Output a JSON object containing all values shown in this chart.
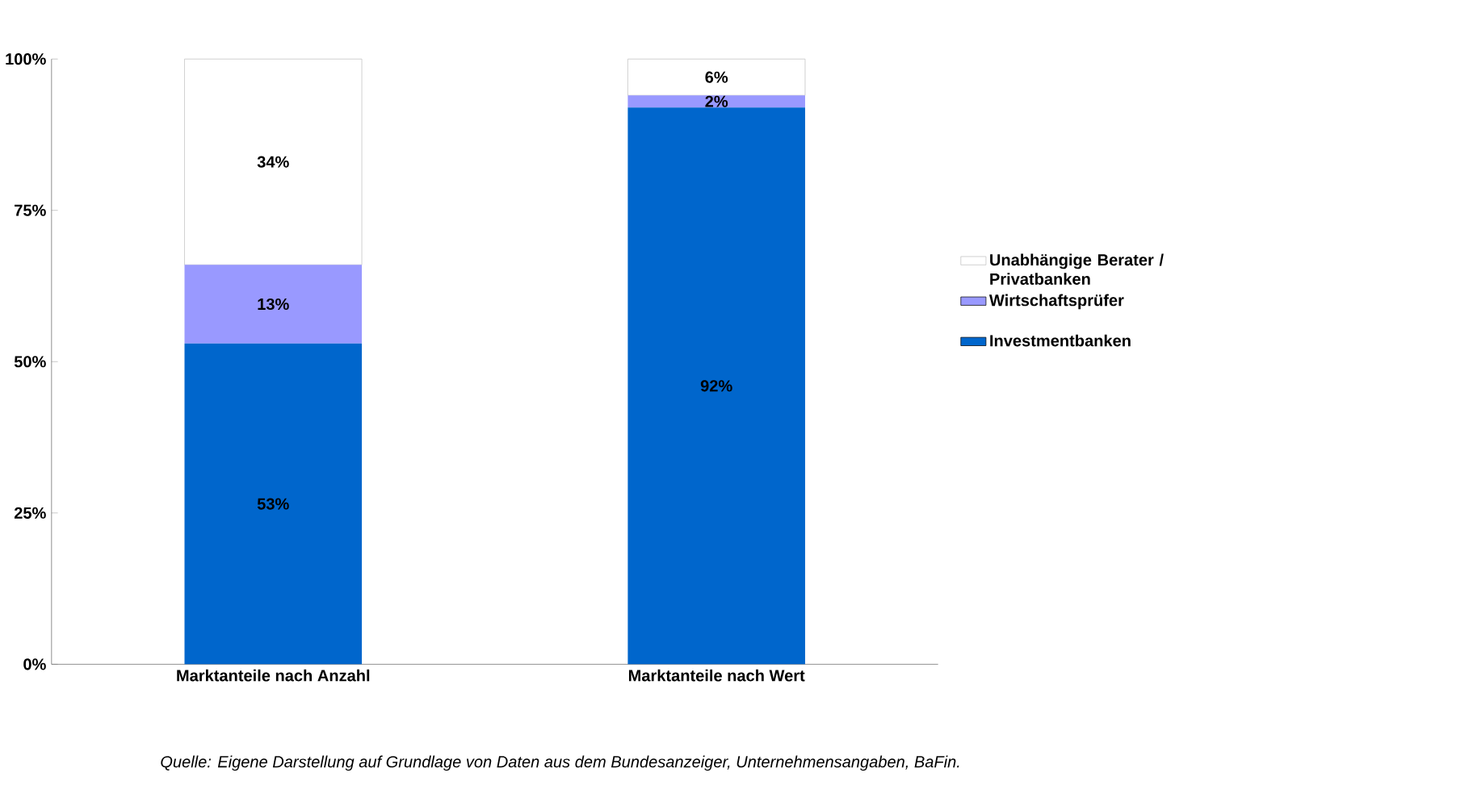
{
  "chart_data": {
    "type": "bar",
    "stacked": true,
    "legend": "right",
    "categories": [
      "Marktanteile nach Anzahl",
      "Marktanteile nach Wert"
    ],
    "series": [
      {
        "name": "Investmentbanken",
        "color": "#0066cc",
        "values": [
          53,
          92
        ],
        "value_labels": [
          "53%",
          "92%"
        ]
      },
      {
        "name": "Wirtschaftsprüfer",
        "color": "#9999ff",
        "values": [
          13,
          2
        ],
        "value_labels": [
          "13%",
          "2%"
        ]
      },
      {
        "name": "Unabhängige Berater / Privatbanken",
        "color": "#ffffff",
        "values": [
          34,
          6
        ],
        "value_labels": [
          "34%",
          "6%"
        ]
      }
    ],
    "ylim": [
      0,
      100
    ],
    "yticks": [
      {
        "value": 0,
        "label": "0%"
      },
      {
        "value": 25,
        "label": "25%"
      },
      {
        "value": 50,
        "label": "50%"
      },
      {
        "value": 75,
        "label": "75%"
      },
      {
        "value": 100,
        "label": "100%"
      }
    ],
    "annotations": [
      "Quelle: Eigene Darstellung auf Grundlage von Daten aus dem Bundesanzeiger, Unternehmensangaben, BaFin."
    ]
  }
}
